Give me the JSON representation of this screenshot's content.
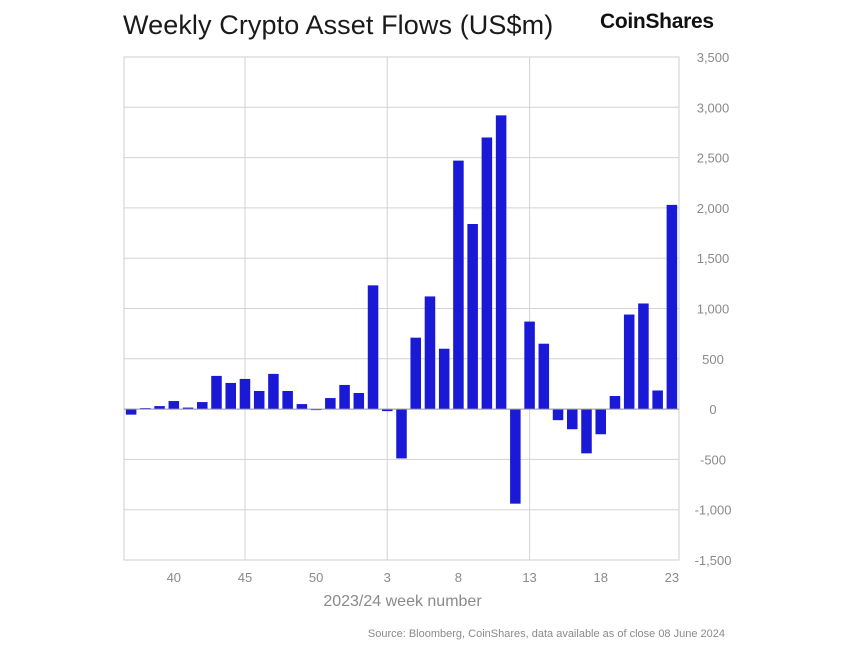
{
  "brand": "CoinShares",
  "source": "Source: Bloomberg, CoinShares, data available as of close 08 June 2024",
  "chart_data": {
    "type": "bar",
    "title": "Weekly Crypto Asset Flows (US$m)",
    "xlabel": "2023/24 week number",
    "ylabel": "",
    "ylim": [
      -1500,
      3500
    ],
    "yticks": [
      3500,
      3000,
      2500,
      2000,
      1500,
      1000,
      500,
      0,
      -500,
      -1000,
      -1500
    ],
    "ytick_labels": [
      "3,500",
      "3,000",
      "2,500",
      "2,000",
      "1,500",
      "1,000",
      "500",
      "0",
      "-500",
      "-1,000",
      "-1,500"
    ],
    "x_tick_labels": [
      "40",
      "45",
      "50",
      "3",
      "8",
      "13",
      "18",
      "23"
    ],
    "x_tick_indices": [
      3,
      8,
      13,
      18,
      23,
      28,
      33,
      38
    ],
    "vertical_gridline_indices": [
      8,
      18,
      28
    ],
    "bar_color": "#1a1ad6",
    "categories": [
      "37",
      "38",
      "39",
      "40",
      "41",
      "42",
      "43",
      "44",
      "45",
      "46",
      "47",
      "48",
      "49",
      "50",
      "51",
      "52",
      "1",
      "2",
      "3",
      "4",
      "5",
      "6",
      "7",
      "8",
      "9",
      "10",
      "11",
      "12",
      "13",
      "14",
      "15",
      "16",
      "17",
      "18",
      "19",
      "20",
      "21",
      "22",
      "23"
    ],
    "values": [
      -55,
      10,
      30,
      80,
      15,
      70,
      330,
      260,
      300,
      180,
      350,
      180,
      50,
      -10,
      110,
      240,
      160,
      1230,
      -20,
      -490,
      710,
      1120,
      600,
      2470,
      1840,
      2700,
      2920,
      -940,
      870,
      650,
      -110,
      -200,
      -440,
      -250,
      130,
      940,
      1050,
      185,
      2030
    ]
  }
}
